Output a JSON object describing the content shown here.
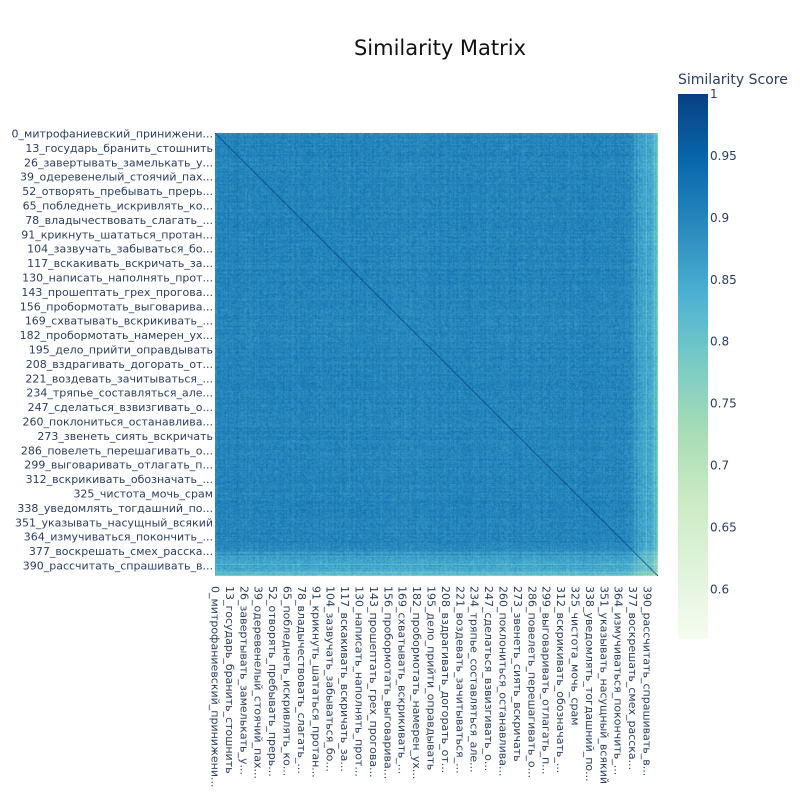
{
  "chart_data": {
    "type": "heatmap",
    "title": "Similarity Matrix",
    "n": 400,
    "label_step": 13,
    "labels": [
      "0_митрофаниевский_принижени...",
      "13_государь_бранить_стошнить",
      "26_завертывать_замелькать_у...",
      "39_одеревенелый_стоячий_пах...",
      "52_отворять_пребывать_прерь...",
      "65_побледнеть_искривлять_ко...",
      "78_владычествовать_слагать_...",
      "91_крикнуть_шататься_протан...",
      "104_зазвучать_забываться_бо...",
      "117_вскакивать_вскричать_за...",
      "130_написать_наполнять_прот...",
      "143_прошептать_грех_прогова...",
      "156_пробормотать_выговарива...",
      "169_схватывать_вскрикивать_...",
      "182_пробормотать_намерен_ух...",
      "195_дело_прийти_оправдывать",
      "208_вздрагивать_догорать_от...",
      "221_воздевать_зачитываться_...",
      "234_тряпье_составляться_але...",
      "247_сделаться_взвизгивать_о...",
      "260_поклониться_останавлива...",
      "273_звенеть_сиять_вскричать",
      "286_повелеть_перешагивать_о...",
      "299_выговаривать_отлагать_п...",
      "312_вскрикивать_обозначать_...",
      "325_чистота_мочь_срам",
      "338_уведомлять_тогдашний_по...",
      "351_указывать_насущный_всякий",
      "364_измучиваться_покончить_...",
      "377_воскрешать_смех_расска...",
      "390_рассчитать_спрашивать_в..."
    ],
    "colorscale": [
      [
        0.0,
        "#f7fcf0"
      ],
      [
        0.125,
        "#e0f3db"
      ],
      [
        0.25,
        "#ccebc5"
      ],
      [
        0.375,
        "#a8ddb5"
      ],
      [
        0.5,
        "#7bccc4"
      ],
      [
        0.625,
        "#4eb3d3"
      ],
      [
        0.75,
        "#2b8cbe"
      ],
      [
        0.875,
        "#0868ac"
      ],
      [
        1.0,
        "#084081"
      ]
    ],
    "colorbar": {
      "title": "Similarity Score",
      "min": 0.56,
      "max": 1.0,
      "ticks": [
        "1",
        "0.95",
        "0.9",
        "0.85",
        "0.8",
        "0.75",
        "0.7",
        "0.65",
        "0.6"
      ],
      "tick_values": [
        1.0,
        0.95,
        0.9,
        0.85,
        0.8,
        0.75,
        0.7,
        0.65,
        0.6
      ]
    },
    "value_summary": {
      "diagonal": 1.0,
      "typical_offdiagonal": 0.9,
      "range": [
        0.56,
        1.0
      ],
      "lower_similarity_indices_start": 370
    },
    "grid": false,
    "legend": "right"
  }
}
